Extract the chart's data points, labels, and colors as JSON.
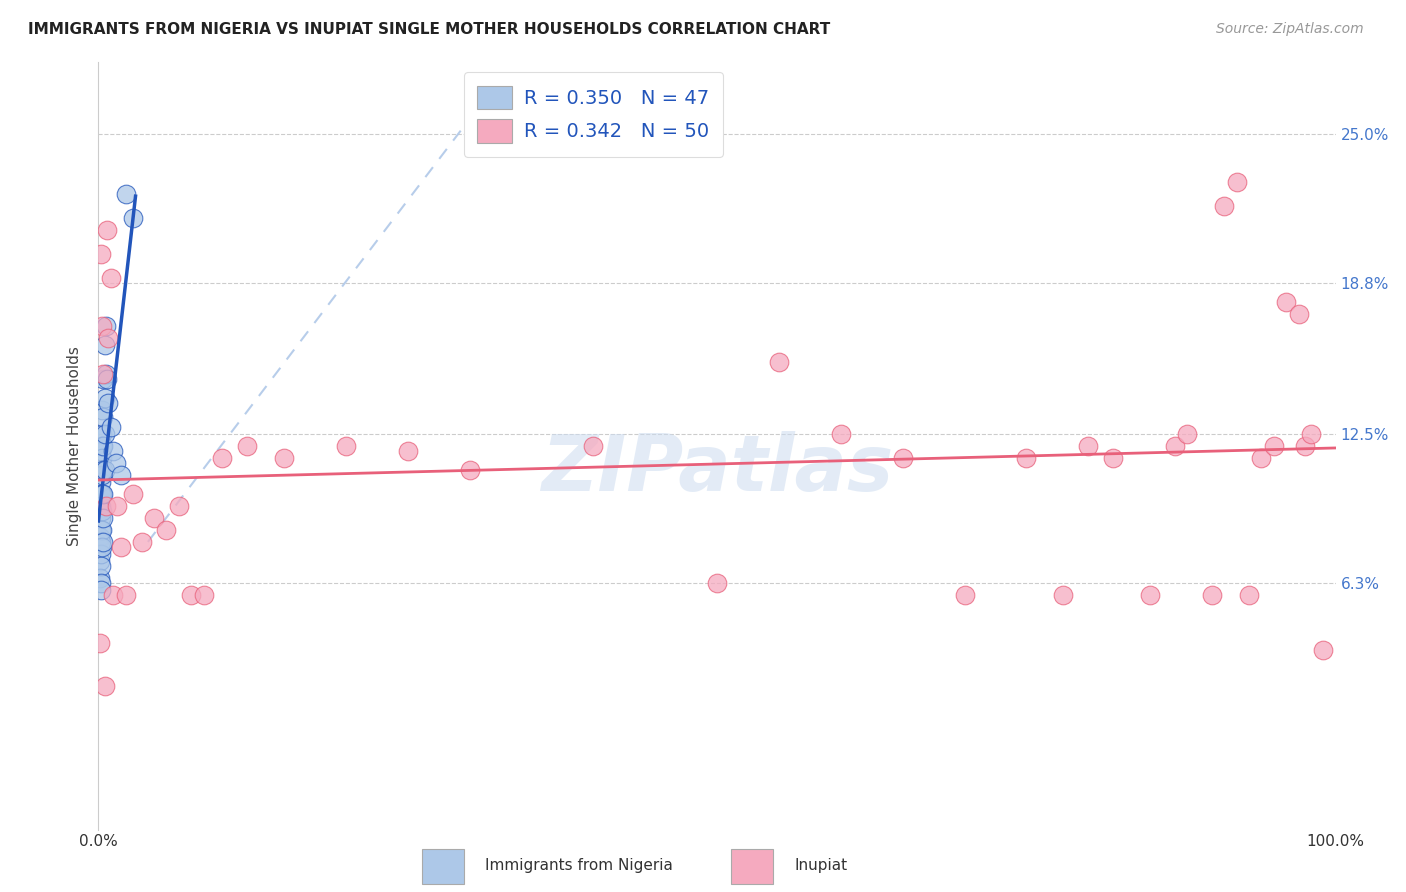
{
  "title": "IMMIGRANTS FROM NIGERIA VS INUPIAT SINGLE MOTHER HOUSEHOLDS CORRELATION CHART",
  "source": "Source: ZipAtlas.com",
  "ylabel": "Single Mother Households",
  "legend_label1": "Immigrants from Nigeria",
  "legend_label2": "Inupiat",
  "legend_r1": "R = 0.350",
  "legend_n1": "N = 47",
  "legend_r2": "R = 0.342",
  "legend_n2": "N = 50",
  "color_blue": "#adc8e8",
  "color_pink": "#f5aabf",
  "line_blue": "#2255bb",
  "line_pink": "#e8607a",
  "line_diag_color": "#b0c8e8",
  "watermark": "ZIPatlas",
  "ytick_labels": [
    "6.3%",
    "12.5%",
    "18.8%",
    "25.0%"
  ],
  "ytick_values": [
    0.063,
    0.125,
    0.188,
    0.25
  ],
  "xlim": [
    0.0,
    1.0
  ],
  "ylim": [
    -0.04,
    0.28
  ],
  "nigeria_x": [
    0.001,
    0.001,
    0.001,
    0.001,
    0.001,
    0.002,
    0.002,
    0.002,
    0.002,
    0.002,
    0.002,
    0.002,
    0.002,
    0.002,
    0.002,
    0.002,
    0.002,
    0.003,
    0.003,
    0.003,
    0.003,
    0.003,
    0.003,
    0.003,
    0.003,
    0.003,
    0.004,
    0.004,
    0.004,
    0.004,
    0.004,
    0.004,
    0.004,
    0.005,
    0.005,
    0.005,
    0.005,
    0.006,
    0.006,
    0.007,
    0.008,
    0.01,
    0.012,
    0.014,
    0.018,
    0.022,
    0.028
  ],
  "nigeria_y": [
    0.095,
    0.082,
    0.078,
    0.072,
    0.065,
    0.118,
    0.11,
    0.105,
    0.1,
    0.095,
    0.09,
    0.085,
    0.08,
    0.075,
    0.07,
    0.063,
    0.06,
    0.135,
    0.125,
    0.12,
    0.115,
    0.108,
    0.1,
    0.093,
    0.085,
    0.078,
    0.148,
    0.132,
    0.12,
    0.11,
    0.1,
    0.09,
    0.08,
    0.162,
    0.14,
    0.125,
    0.11,
    0.17,
    0.15,
    0.148,
    0.138,
    0.128,
    0.118,
    0.113,
    0.108,
    0.225,
    0.215
  ],
  "inupiat_x": [
    0.001,
    0.002,
    0.003,
    0.004,
    0.005,
    0.006,
    0.007,
    0.008,
    0.01,
    0.012,
    0.015,
    0.018,
    0.022,
    0.028,
    0.035,
    0.045,
    0.055,
    0.065,
    0.075,
    0.085,
    0.1,
    0.12,
    0.15,
    0.2,
    0.25,
    0.3,
    0.4,
    0.5,
    0.55,
    0.6,
    0.65,
    0.7,
    0.75,
    0.78,
    0.8,
    0.82,
    0.85,
    0.87,
    0.88,
    0.9,
    0.91,
    0.92,
    0.93,
    0.94,
    0.95,
    0.96,
    0.97,
    0.975,
    0.98,
    0.99
  ],
  "inupiat_y": [
    0.038,
    0.2,
    0.17,
    0.15,
    0.02,
    0.095,
    0.21,
    0.165,
    0.19,
    0.058,
    0.095,
    0.078,
    0.058,
    0.1,
    0.08,
    0.09,
    0.085,
    0.095,
    0.058,
    0.058,
    0.115,
    0.12,
    0.115,
    0.12,
    0.118,
    0.11,
    0.12,
    0.063,
    0.155,
    0.125,
    0.115,
    0.058,
    0.115,
    0.058,
    0.12,
    0.115,
    0.058,
    0.12,
    0.125,
    0.058,
    0.22,
    0.23,
    0.058,
    0.115,
    0.12,
    0.18,
    0.175,
    0.12,
    0.125,
    0.035
  ]
}
